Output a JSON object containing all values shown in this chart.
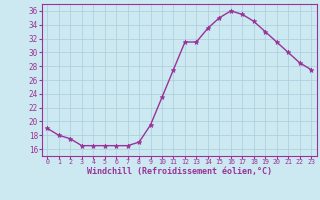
{
  "x": [
    0,
    1,
    2,
    3,
    4,
    5,
    6,
    7,
    8,
    9,
    10,
    11,
    12,
    13,
    14,
    15,
    16,
    17,
    18,
    19,
    20,
    21,
    22,
    23
  ],
  "y": [
    19.0,
    18.0,
    17.5,
    16.5,
    16.5,
    16.5,
    16.5,
    16.5,
    17.0,
    19.5,
    23.5,
    27.5,
    31.5,
    31.5,
    33.5,
    35.0,
    36.0,
    35.5,
    34.5,
    33.0,
    31.5,
    30.0,
    28.5,
    27.5
  ],
  "line_color": "#993399",
  "bg_color": "#cce8f0",
  "grid_color": "#aaccdd",
  "xlabel": "Windchill (Refroidissement éolien,°C)",
  "xlim": [
    -0.5,
    23.5
  ],
  "ylim": [
    15.0,
    37.0
  ],
  "yticks": [
    16,
    18,
    20,
    22,
    24,
    26,
    28,
    30,
    32,
    34,
    36
  ],
  "xticks": [
    0,
    1,
    2,
    3,
    4,
    5,
    6,
    7,
    8,
    9,
    10,
    11,
    12,
    13,
    14,
    15,
    16,
    17,
    18,
    19,
    20,
    21,
    22,
    23
  ],
  "font_color": "#993399",
  "axis_color": "#993399"
}
